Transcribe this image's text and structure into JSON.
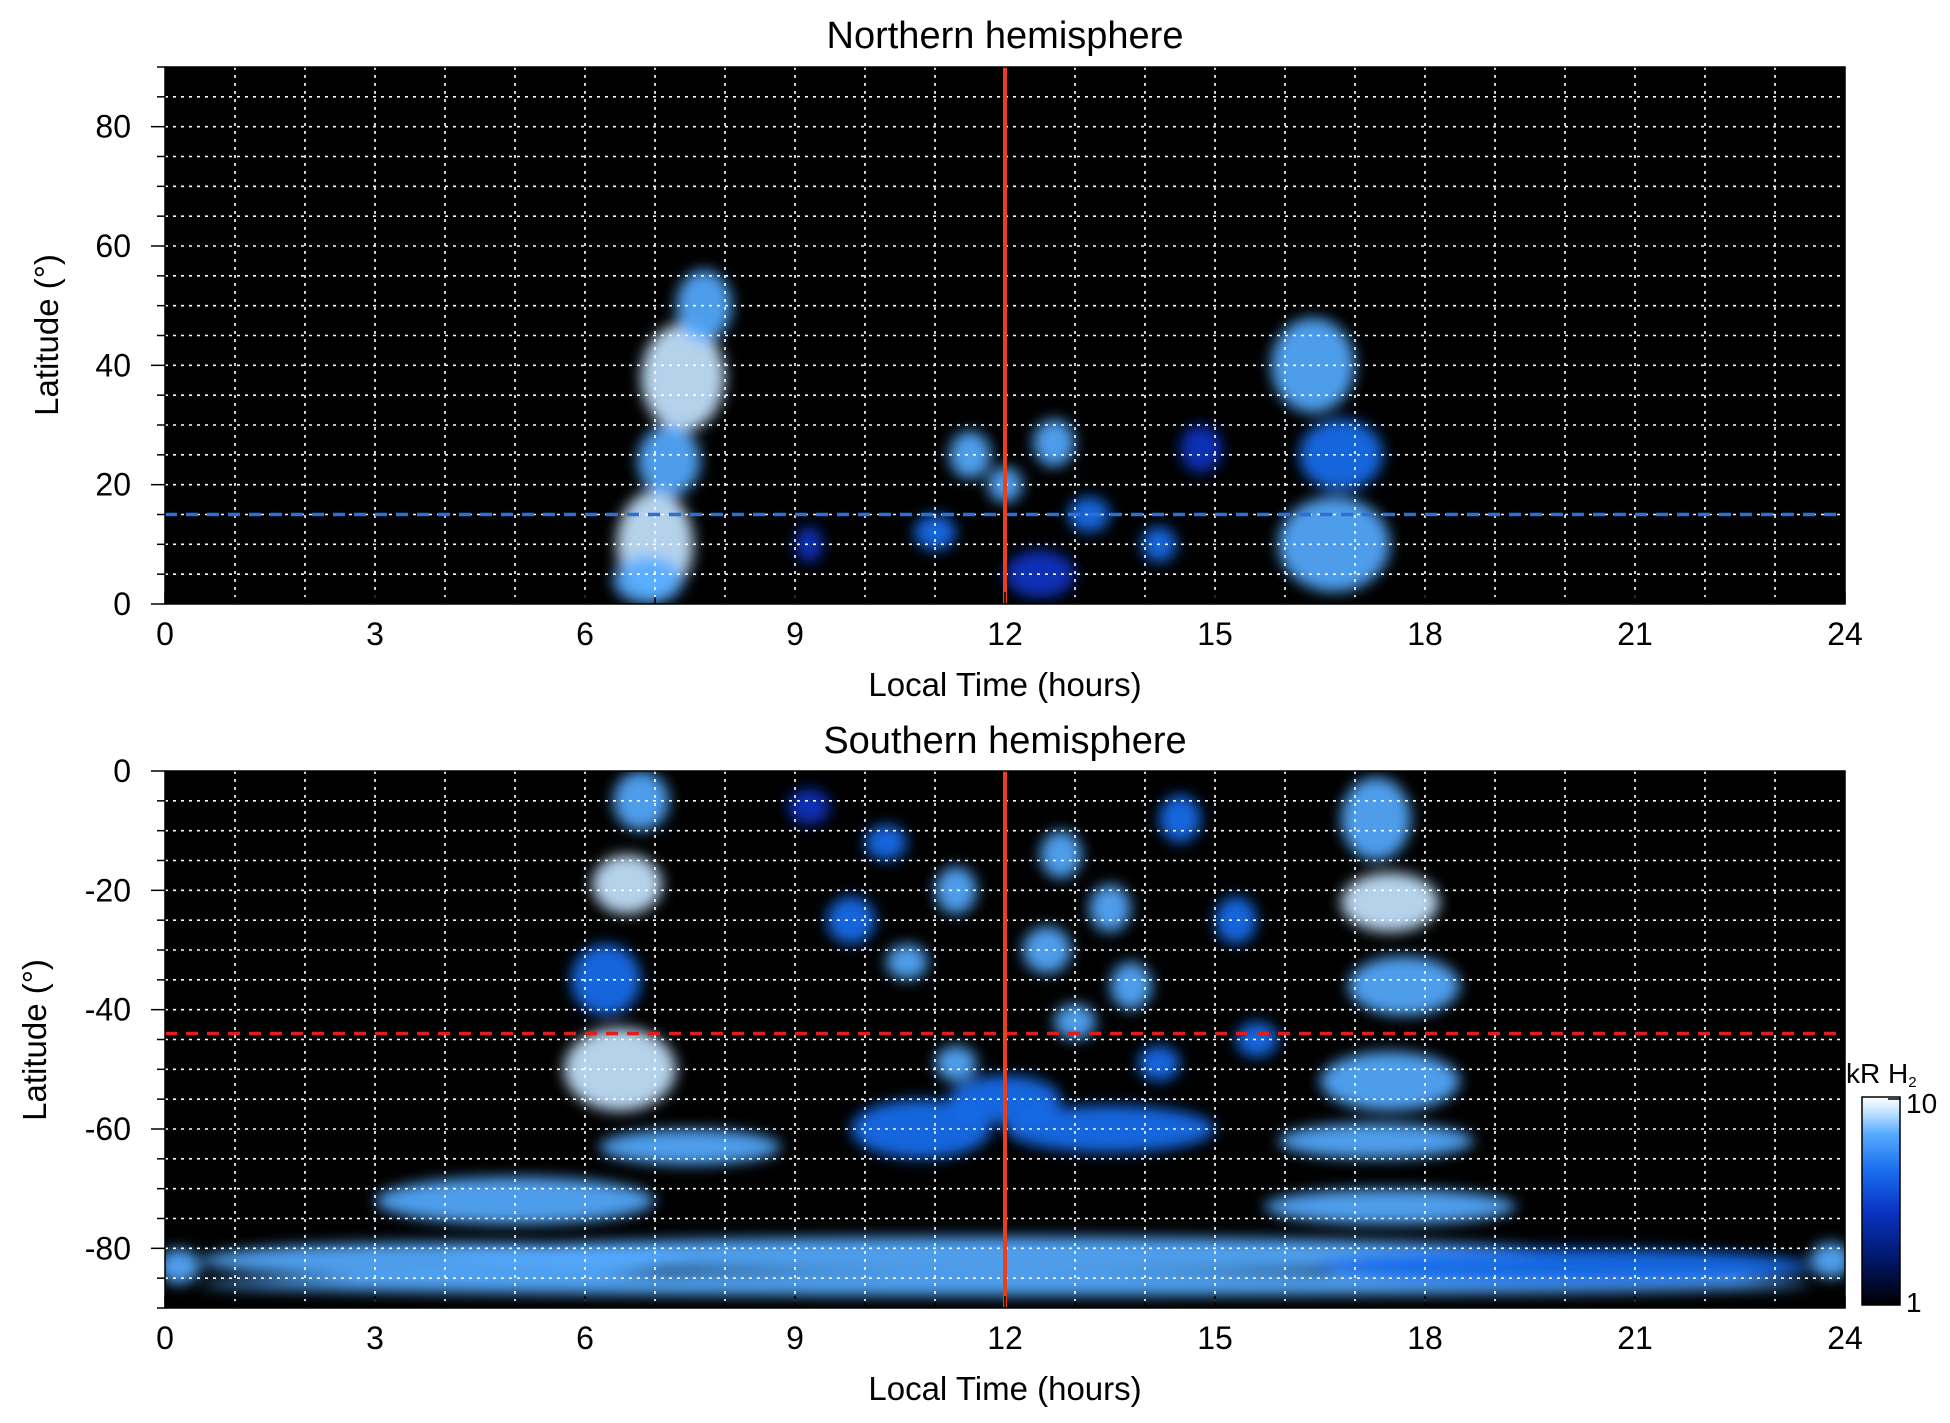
{
  "chart_data": [
    {
      "type": "heatmap",
      "title": "Northern hemisphere",
      "xlabel": "Local Time (hours)",
      "ylabel": "Latitude (°)",
      "xlim": [
        0,
        24
      ],
      "ylim": [
        0,
        90
      ],
      "xticks": [
        0,
        3,
        6,
        9,
        12,
        15,
        18,
        21,
        24
      ],
      "xtick_labels": [
        "0",
        "3",
        "6",
        "9",
        "12",
        "15",
        "18",
        "21",
        "24"
      ],
      "yticks": [
        0,
        20,
        40,
        60,
        80
      ],
      "ytick_labels": [
        "0",
        "20",
        "40",
        "60",
        "80"
      ],
      "grid": true,
      "background": "#000000",
      "grid_color": "#ffffff",
      "noon_line": {
        "x": 12,
        "color": "#e8401c"
      },
      "reference_line": {
        "y": 15,
        "style": "dashed",
        "color": "#2c6fd6"
      },
      "emission_regions": [
        {
          "x": 7.0,
          "y": 10,
          "rx": 0.55,
          "ry": 9,
          "intensity": 8
        },
        {
          "x": 7.4,
          "y": 38,
          "rx": 0.6,
          "ry": 9,
          "intensity": 7
        },
        {
          "x": 7.7,
          "y": 50,
          "rx": 0.4,
          "ry": 6,
          "intensity": 4
        },
        {
          "x": 7.2,
          "y": 24,
          "rx": 0.45,
          "ry": 6,
          "intensity": 4
        },
        {
          "x": 6.9,
          "y": 4,
          "rx": 0.5,
          "ry": 4,
          "intensity": 5
        },
        {
          "x": 16.4,
          "y": 40,
          "rx": 0.6,
          "ry": 8,
          "intensity": 5
        },
        {
          "x": 16.7,
          "y": 10,
          "rx": 0.8,
          "ry": 8,
          "intensity": 4
        },
        {
          "x": 16.8,
          "y": 25,
          "rx": 0.6,
          "ry": 6,
          "intensity": 3
        },
        {
          "x": 11.5,
          "y": 25,
          "rx": 0.3,
          "ry": 4,
          "intensity": 5
        },
        {
          "x": 12.7,
          "y": 27,
          "rx": 0.3,
          "ry": 4,
          "intensity": 5
        },
        {
          "x": 12.0,
          "y": 20,
          "rx": 0.25,
          "ry": 3,
          "intensity": 4
        },
        {
          "x": 13.2,
          "y": 15,
          "rx": 0.3,
          "ry": 3,
          "intensity": 3
        },
        {
          "x": 14.2,
          "y": 10,
          "rx": 0.25,
          "ry": 3,
          "intensity": 3
        },
        {
          "x": 11.0,
          "y": 12,
          "rx": 0.3,
          "ry": 3,
          "intensity": 3
        },
        {
          "x": 9.2,
          "y": 10,
          "rx": 0.2,
          "ry": 3,
          "intensity": 2
        },
        {
          "x": 12.5,
          "y": 5,
          "rx": 0.5,
          "ry": 4,
          "intensity": 2
        },
        {
          "x": 14.8,
          "y": 26,
          "rx": 0.3,
          "ry": 4,
          "intensity": 2
        }
      ]
    },
    {
      "type": "heatmap",
      "title": "Southern hemisphere",
      "xlabel": "Local Time (hours)",
      "ylabel": "Latitude (°)",
      "xlim": [
        0,
        24
      ],
      "ylim": [
        -90,
        0
      ],
      "xticks": [
        0,
        3,
        6,
        9,
        12,
        15,
        18,
        21,
        24
      ],
      "xtick_labels": [
        "0",
        "3",
        "6",
        "9",
        "12",
        "15",
        "18",
        "21",
        "24"
      ],
      "yticks": [
        0,
        -20,
        -40,
        -60,
        -80
      ],
      "ytick_labels": [
        "0",
        "-20",
        "-40",
        "-60",
        "-80"
      ],
      "grid": true,
      "background": "#000000",
      "grid_color": "#ffffff",
      "noon_line": {
        "x": 12,
        "color": "#e8401c"
      },
      "reference_line": {
        "y": -44,
        "style": "dashed",
        "color": "#e01e1e"
      },
      "emission_regions": [
        {
          "x": 6.8,
          "y": -5,
          "rx": 0.4,
          "ry": 5,
          "intensity": 5
        },
        {
          "x": 6.6,
          "y": -19,
          "rx": 0.5,
          "ry": 5,
          "intensity": 6
        },
        {
          "x": 6.5,
          "y": -50,
          "rx": 0.8,
          "ry": 7,
          "intensity": 7
        },
        {
          "x": 6.3,
          "y": -35,
          "rx": 0.5,
          "ry": 6,
          "intensity": 3
        },
        {
          "x": 7.5,
          "y": -63,
          "rx": 1.3,
          "ry": 3,
          "intensity": 5
        },
        {
          "x": 5.0,
          "y": -72,
          "rx": 2.0,
          "ry": 4,
          "intensity": 4
        },
        {
          "x": 17.3,
          "y": -8,
          "rx": 0.5,
          "ry": 7,
          "intensity": 5
        },
        {
          "x": 17.5,
          "y": -22,
          "rx": 0.7,
          "ry": 5,
          "intensity": 7
        },
        {
          "x": 17.7,
          "y": -36,
          "rx": 0.8,
          "ry": 5,
          "intensity": 5
        },
        {
          "x": 17.5,
          "y": -52,
          "rx": 1.0,
          "ry": 5,
          "intensity": 4
        },
        {
          "x": 17.3,
          "y": -62,
          "rx": 1.4,
          "ry": 3,
          "intensity": 4
        },
        {
          "x": 17.5,
          "y": -73,
          "rx": 1.8,
          "ry": 3,
          "intensity": 4
        },
        {
          "x": 12.0,
          "y": -81,
          "rx": 8.0,
          "ry": 3,
          "intensity": 5
        },
        {
          "x": 12.0,
          "y": -86,
          "rx": 11.5,
          "ry": 2,
          "intensity": 5
        },
        {
          "x": 4.0,
          "y": -82,
          "rx": 3.5,
          "ry": 3,
          "intensity": 4
        },
        {
          "x": 20.0,
          "y": -83,
          "rx": 3.5,
          "ry": 3,
          "intensity": 3
        },
        {
          "x": 0.2,
          "y": -83,
          "rx": 0.3,
          "ry": 3,
          "intensity": 4
        },
        {
          "x": 23.8,
          "y": -82,
          "rx": 0.3,
          "ry": 3,
          "intensity": 4
        },
        {
          "x": 11.3,
          "y": -20,
          "rx": 0.3,
          "ry": 4,
          "intensity": 4
        },
        {
          "x": 12.8,
          "y": -14,
          "rx": 0.3,
          "ry": 4,
          "intensity": 5
        },
        {
          "x": 13.5,
          "y": -23,
          "rx": 0.3,
          "ry": 4,
          "intensity": 4
        },
        {
          "x": 12.6,
          "y": -30,
          "rx": 0.35,
          "ry": 4,
          "intensity": 4
        },
        {
          "x": 13.8,
          "y": -36,
          "rx": 0.3,
          "ry": 4,
          "intensity": 4
        },
        {
          "x": 10.6,
          "y": -32,
          "rx": 0.3,
          "ry": 3,
          "intensity": 5
        },
        {
          "x": 11.3,
          "y": -49,
          "rx": 0.3,
          "ry": 3,
          "intensity": 5
        },
        {
          "x": 13.0,
          "y": -42,
          "rx": 0.3,
          "ry": 3,
          "intensity": 4
        },
        {
          "x": 14.2,
          "y": -49,
          "rx": 0.3,
          "ry": 3,
          "intensity": 3
        },
        {
          "x": 12.0,
          "y": -55,
          "rx": 0.8,
          "ry": 4,
          "intensity": 3
        },
        {
          "x": 13.5,
          "y": -60,
          "rx": 1.5,
          "ry": 4,
          "intensity": 3
        },
        {
          "x": 10.8,
          "y": -60,
          "rx": 1.0,
          "ry": 5,
          "intensity": 3
        },
        {
          "x": 14.5,
          "y": -8,
          "rx": 0.3,
          "ry": 4,
          "intensity": 3
        },
        {
          "x": 10.3,
          "y": -12,
          "rx": 0.3,
          "ry": 3,
          "intensity": 3
        },
        {
          "x": 9.2,
          "y": -6,
          "rx": 0.3,
          "ry": 3,
          "intensity": 2
        },
        {
          "x": 15.3,
          "y": -25,
          "rx": 0.3,
          "ry": 4,
          "intensity": 3
        },
        {
          "x": 9.8,
          "y": -25,
          "rx": 0.35,
          "ry": 4,
          "intensity": 3
        },
        {
          "x": 15.6,
          "y": -45,
          "rx": 0.3,
          "ry": 3,
          "intensity": 3
        }
      ]
    }
  ],
  "colorbar": {
    "label_main": "kR H",
    "label_sub": "2",
    "tick_max": "10",
    "tick_min": "1",
    "scale": "log",
    "colors": [
      "#000000",
      "#001560",
      "#0a34c4",
      "#1a6ff0",
      "#55aaff",
      "#c4e4ff",
      "#ffffff"
    ]
  }
}
